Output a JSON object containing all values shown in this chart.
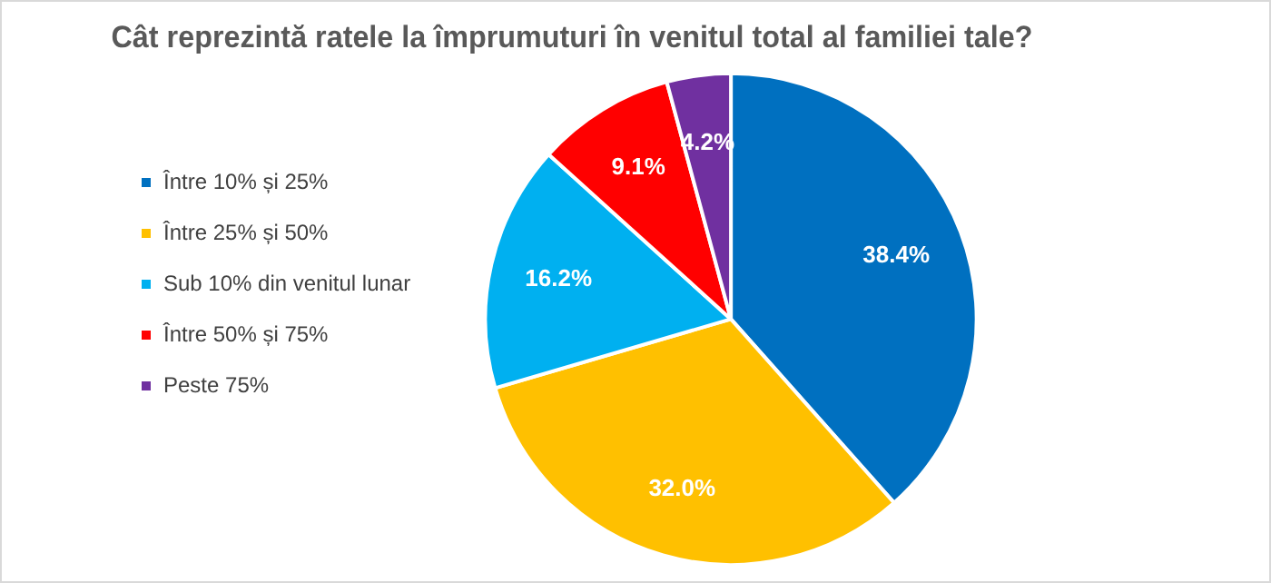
{
  "chart_data": {
    "type": "pie",
    "title": "Cât reprezintă ratele la împrumuturi în venitul total al familiei tale?",
    "categories": [
      "Între 10% și 25%",
      "Între 25% și 50%",
      "Sub 10% din venitul lunar",
      "Între 50% și 75%",
      "Peste 75%"
    ],
    "values": [
      38.4,
      32.0,
      16.2,
      9.1,
      4.2
    ],
    "colors": [
      "#0070c0",
      "#ffc000",
      "#00b0f0",
      "#ff0000",
      "#7030a0"
    ],
    "value_labels": [
      "38.4%",
      "32.0%",
      "16.2%",
      "9.1%",
      "4.2%"
    ],
    "legend": "left"
  }
}
